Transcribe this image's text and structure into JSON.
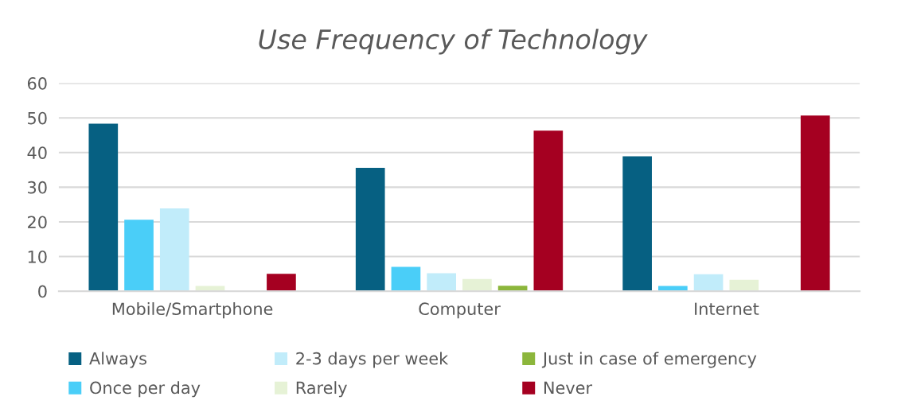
{
  "chart_data": {
    "type": "bar",
    "title": "Use Frequency of Technology",
    "categories": [
      "Mobile/Smartphone",
      "Computer",
      "Internet"
    ],
    "series": [
      {
        "name": "Always",
        "color": "#066082",
        "values": [
          48.3,
          35.6,
          38.9
        ]
      },
      {
        "name": "Once per day",
        "color": "#4acef8",
        "values": [
          20.6,
          7.0,
          1.5
        ]
      },
      {
        "name": "2-3 days per week",
        "color": "#c1ecfa",
        "values": [
          23.9,
          5.2,
          4.9
        ]
      },
      {
        "name": "Rarely",
        "color": "#e6f2d6",
        "values": [
          1.5,
          3.5,
          3.3
        ]
      },
      {
        "name": "Just in case of emergency",
        "color": "#8cb63c",
        "values": [
          0,
          1.6,
          0
        ]
      },
      {
        "name": "Never",
        "color": "#a50021",
        "values": [
          5.0,
          46.3,
          50.7
        ]
      }
    ],
    "ylim": [
      0,
      60
    ],
    "yticks": [
      0,
      10,
      20,
      30,
      40,
      50,
      60
    ],
    "grid": "y",
    "legend": "bottom"
  }
}
